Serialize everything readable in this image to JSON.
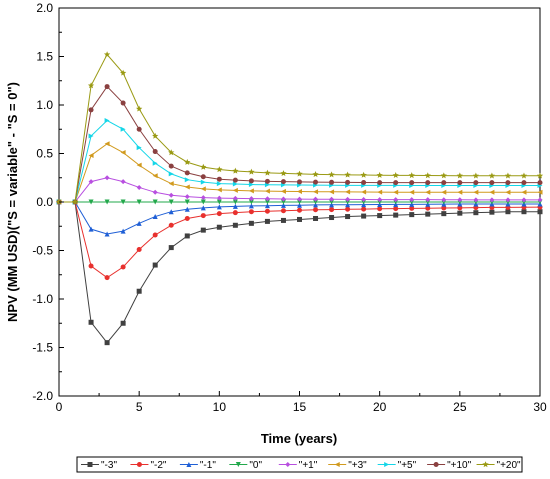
{
  "chart_data": {
    "type": "line",
    "xlabel": "Time (years)",
    "ylabel": "NPV (MM USD)(\"S = variable\" - \"S = 0\")",
    "xlim": [
      0,
      30
    ],
    "ylim": [
      -2.0,
      2.0
    ],
    "xticks": [
      0,
      5,
      10,
      15,
      20,
      25,
      30
    ],
    "xtick_labels": [
      "0",
      "5",
      "10",
      "15",
      "20",
      "25",
      "30"
    ],
    "yticks": [
      -2.0,
      -1.5,
      -1.0,
      -0.5,
      0.0,
      0.5,
      1.0,
      1.5,
      2.0
    ],
    "ytick_labels": [
      "-2.0",
      "-1.5",
      "-1.0",
      "-0.5",
      "0.0",
      "0.5",
      "1.0",
      "1.5",
      "2.0"
    ],
    "grid": false,
    "legend_position": "bottom",
    "x": [
      0,
      1,
      2,
      3,
      4,
      5,
      6,
      7,
      8,
      9,
      10,
      11,
      12,
      13,
      14,
      15,
      16,
      17,
      18,
      19,
      20,
      21,
      22,
      23,
      24,
      25,
      26,
      27,
      28,
      29,
      30
    ],
    "series": [
      {
        "name": "\"-3\"",
        "color": "#404040",
        "marker": "square",
        "values": [
          0,
          0,
          -1.24,
          -1.45,
          -1.25,
          -0.92,
          -0.65,
          -0.47,
          -0.35,
          -0.29,
          -0.26,
          -0.24,
          -0.22,
          -0.2,
          -0.19,
          -0.18,
          -0.17,
          -0.16,
          -0.15,
          -0.145,
          -0.14,
          -0.135,
          -0.13,
          -0.125,
          -0.12,
          -0.115,
          -0.11,
          -0.105,
          -0.1,
          -0.1,
          -0.1
        ]
      },
      {
        "name": "\"-2\"",
        "color": "#e8302d",
        "marker": "circle",
        "values": [
          0,
          0,
          -0.66,
          -0.78,
          -0.67,
          -0.49,
          -0.34,
          -0.24,
          -0.17,
          -0.14,
          -0.12,
          -0.11,
          -0.1,
          -0.095,
          -0.09,
          -0.085,
          -0.08,
          -0.078,
          -0.075,
          -0.073,
          -0.07,
          -0.068,
          -0.066,
          -0.064,
          -0.062,
          -0.06,
          -0.058,
          -0.056,
          -0.055,
          -0.054,
          -0.053
        ]
      },
      {
        "name": "\"-1\"",
        "color": "#1f5fd6",
        "marker": "triangle-up",
        "values": [
          0,
          0,
          -0.28,
          -0.33,
          -0.3,
          -0.22,
          -0.15,
          -0.1,
          -0.075,
          -0.06,
          -0.05,
          -0.045,
          -0.04,
          -0.038,
          -0.035,
          -0.033,
          -0.03,
          -0.029,
          -0.028,
          -0.027,
          -0.026,
          -0.025,
          -0.024,
          -0.023,
          -0.022,
          -0.021,
          -0.02,
          -0.02,
          -0.02,
          -0.02,
          -0.02
        ]
      },
      {
        "name": "\"0\"",
        "color": "#22a84b",
        "marker": "triangle-down",
        "values": [
          0,
          0,
          0,
          0,
          0,
          0,
          0,
          0,
          0,
          0,
          0,
          0,
          0,
          0,
          0,
          0,
          0,
          0,
          0,
          0,
          0,
          0,
          0,
          0,
          0,
          0,
          0,
          0,
          0,
          0,
          0
        ]
      },
      {
        "name": "\"+1\"",
        "color": "#b84fe0",
        "marker": "diamond",
        "values": [
          0,
          0,
          0.21,
          0.25,
          0.21,
          0.15,
          0.1,
          0.07,
          0.055,
          0.045,
          0.04,
          0.037,
          0.035,
          0.033,
          0.031,
          0.03,
          0.029,
          0.028,
          0.027,
          0.026,
          0.025,
          0.025,
          0.024,
          0.024,
          0.023,
          0.023,
          0.022,
          0.022,
          0.022,
          0.022,
          0.022
        ]
      },
      {
        "name": "\"+3\"",
        "color": "#d19a1e",
        "marker": "triangle-left",
        "values": [
          0,
          0,
          0.48,
          0.6,
          0.51,
          0.38,
          0.27,
          0.19,
          0.155,
          0.135,
          0.125,
          0.12,
          0.115,
          0.112,
          0.11,
          0.108,
          0.106,
          0.105,
          0.104,
          0.103,
          0.102,
          0.101,
          0.1,
          0.1,
          0.1,
          0.1,
          0.1,
          0.1,
          0.1,
          0.1,
          0.1
        ]
      },
      {
        "name": "\"+5\"",
        "color": "#14d6e8",
        "marker": "triangle-right",
        "values": [
          0,
          0,
          0.68,
          0.84,
          0.75,
          0.56,
          0.4,
          0.29,
          0.23,
          0.205,
          0.19,
          0.185,
          0.18,
          0.178,
          0.176,
          0.175,
          0.174,
          0.173,
          0.172,
          0.172,
          0.171,
          0.171,
          0.17,
          0.17,
          0.17,
          0.17,
          0.17,
          0.17,
          0.17,
          0.17,
          0.17
        ]
      },
      {
        "name": "\"+10\"",
        "color": "#8a4040",
        "marker": "circle",
        "values": [
          0,
          0,
          0.95,
          1.19,
          1.02,
          0.75,
          0.52,
          0.37,
          0.3,
          0.26,
          0.235,
          0.225,
          0.218,
          0.213,
          0.21,
          0.207,
          0.205,
          0.203,
          0.202,
          0.201,
          0.2,
          0.2,
          0.2,
          0.2,
          0.2,
          0.2,
          0.2,
          0.2,
          0.2,
          0.2,
          0.2
        ]
      },
      {
        "name": "\"+20\"",
        "color": "#9a9a14",
        "marker": "star",
        "values": [
          0,
          0,
          1.2,
          1.52,
          1.33,
          0.96,
          0.68,
          0.51,
          0.41,
          0.36,
          0.335,
          0.32,
          0.31,
          0.3,
          0.295,
          0.29,
          0.285,
          0.282,
          0.28,
          0.278,
          0.276,
          0.275,
          0.274,
          0.273,
          0.272,
          0.271,
          0.27,
          0.27,
          0.27,
          0.27,
          0.27
        ]
      }
    ]
  }
}
